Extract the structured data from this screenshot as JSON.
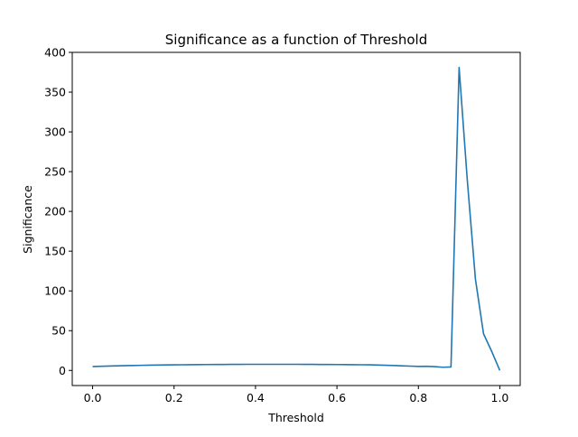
{
  "chart_data": {
    "type": "line",
    "title": "Significance as a function of Threshold",
    "xlabel": "Threshold",
    "ylabel": "Significance",
    "xlim": [
      -0.05,
      1.05
    ],
    "ylim": [
      -19,
      400
    ],
    "xticks": [
      0.0,
      0.2,
      0.4,
      0.6,
      0.8,
      1.0
    ],
    "xtick_labels": [
      "0.0",
      "0.2",
      "0.4",
      "0.6",
      "0.8",
      "1.0"
    ],
    "yticks": [
      0,
      50,
      100,
      150,
      200,
      250,
      300,
      350,
      400
    ],
    "ytick_labels": [
      "0",
      "50",
      "100",
      "150",
      "200",
      "250",
      "300",
      "350",
      "400"
    ],
    "grid": false,
    "series": [
      {
        "color": "#1f77b4",
        "x": [
          0.0,
          0.02,
          0.04,
          0.06,
          0.08,
          0.1,
          0.12,
          0.14,
          0.16,
          0.18,
          0.2,
          0.22,
          0.24,
          0.26,
          0.28,
          0.3,
          0.32,
          0.34,
          0.36,
          0.38,
          0.4,
          0.42,
          0.44,
          0.46,
          0.48,
          0.5,
          0.52,
          0.54,
          0.56,
          0.58,
          0.6,
          0.62,
          0.64,
          0.66,
          0.68,
          0.7,
          0.72,
          0.74,
          0.76,
          0.78,
          0.8,
          0.82,
          0.84,
          0.86,
          0.88,
          0.9,
          0.92,
          0.94,
          0.96,
          0.98,
          1.0
        ],
        "y": [
          4.9,
          5.2,
          5.5,
          5.8,
          6.0,
          6.2,
          6.4,
          6.6,
          6.8,
          6.9,
          7.0,
          7.1,
          7.2,
          7.3,
          7.4,
          7.5,
          7.5,
          7.6,
          7.6,
          7.7,
          7.7,
          7.7,
          7.7,
          7.7,
          7.7,
          7.7,
          7.6,
          7.6,
          7.5,
          7.5,
          7.4,
          7.3,
          7.2,
          7.1,
          7.0,
          6.8,
          6.5,
          6.2,
          5.8,
          5.4,
          5.0,
          5.2,
          4.8,
          4.0,
          4.3,
          381.0,
          240.0,
          115.0,
          46.0,
          24.0,
          0.0
        ]
      }
    ]
  }
}
